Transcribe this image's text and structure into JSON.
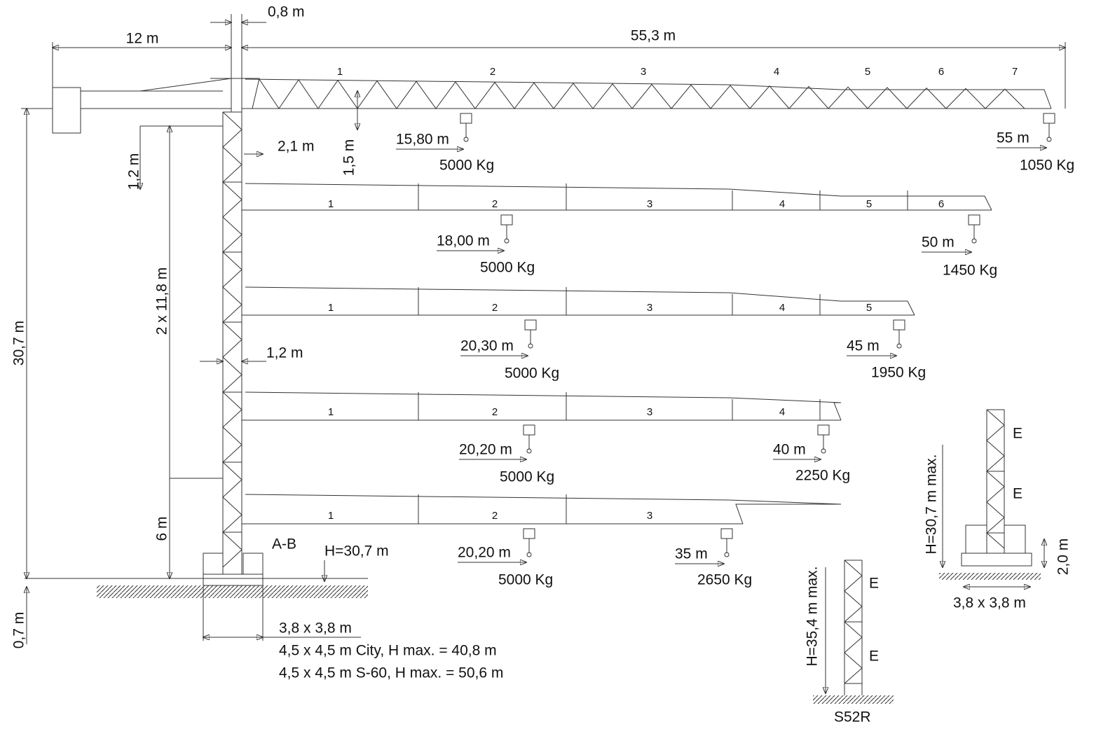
{
  "dimensions": {
    "mast_offset": "0,8 m",
    "counter_jib": "12 m",
    "jib_length": "55,3 m",
    "top_height": "1,2 m",
    "hook_offset": "2,1 m",
    "hook_drop": "1,5 m",
    "mast_sections": "2 x 11,8 m",
    "mast_width": "1,2 m",
    "total_height": "30,7 m",
    "base_section": "6 m",
    "foundation": "0,7 m"
  },
  "configurations": [
    {
      "sections": [
        "1",
        "2",
        "3",
        "4",
        "5",
        "6",
        "7"
      ],
      "near_radius": "15,80 m",
      "near_load": "5000 Kg",
      "tip_radius": "55 m",
      "tip_load": "1050 Kg"
    },
    {
      "sections": [
        "1",
        "2",
        "3",
        "4",
        "5",
        "6"
      ],
      "near_radius": "18,00 m",
      "near_load": "5000 Kg",
      "tip_radius": "50 m",
      "tip_load": "1450 Kg"
    },
    {
      "sections": [
        "1",
        "2",
        "3",
        "4",
        "5"
      ],
      "near_radius": "20,30 m",
      "near_load": "5000 Kg",
      "tip_radius": "45 m",
      "tip_load": "1950 Kg"
    },
    {
      "sections": [
        "1",
        "2",
        "3",
        "4"
      ],
      "near_radius": "20,20 m",
      "near_load": "5000 Kg",
      "tip_radius": "40 m",
      "tip_load": "2250 Kg"
    },
    {
      "sections": [
        "1",
        "2",
        "3"
      ],
      "near_radius": "20,20 m",
      "near_load": "5000 Kg",
      "tip_radius": "35 m",
      "tip_load": "2650 Kg"
    }
  ],
  "base": {
    "label": "A-B",
    "height": "H=30,7 m",
    "size": "3,8 x 3,8 m",
    "notes": [
      "4,5 x 4,5 m City, H max. = 40,8 m",
      "4,5 x 4,5 m S-60, H max. = 50,6 m"
    ]
  },
  "variants": [
    {
      "height": "H=30,7 m  max.",
      "sections": [
        "E",
        "E"
      ],
      "ballast_height": "2,0 m",
      "size": "3,8 x 3,8 m"
    },
    {
      "height": "H=35,4 m  max.",
      "sections": [
        "E",
        "E"
      ],
      "label": "S52R"
    }
  ]
}
